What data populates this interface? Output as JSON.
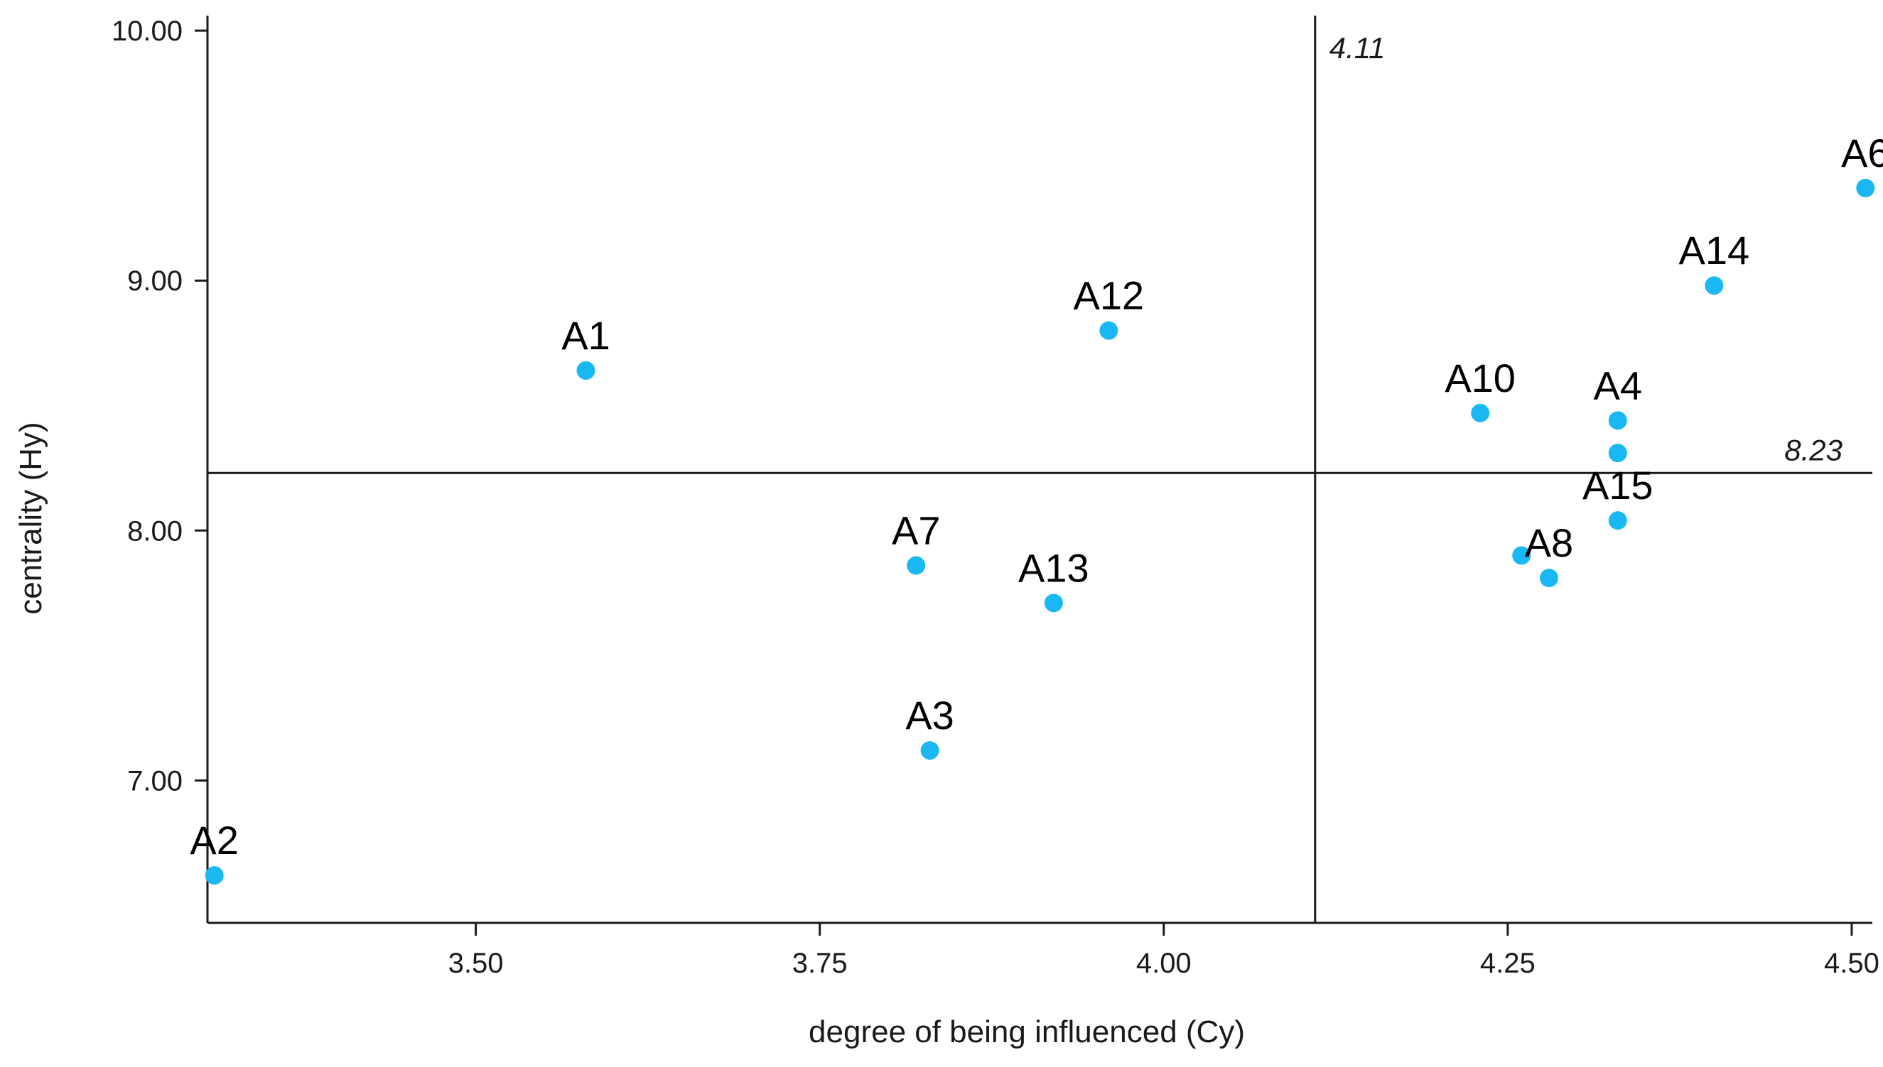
{
  "chart_data": {
    "type": "scatter",
    "title": "",
    "xlabel": "degree of being influenced  (Cy)",
    "ylabel": "centrality  (Hy)",
    "xlim": [
      3.305,
      4.515
    ],
    "ylim": [
      6.43,
      10.06
    ],
    "x_ticks": [
      3.5,
      3.75,
      4.0,
      4.25,
      4.5
    ],
    "x_tick_labels": [
      "3.50",
      "3.75",
      "4.00",
      "4.25",
      "4.50"
    ],
    "y_ticks": [
      7.0,
      8.0,
      9.0,
      10.0
    ],
    "y_tick_labels": [
      "7.00",
      "8.00",
      "9.00",
      "10.00"
    ],
    "grid": false,
    "reference_lines": {
      "vertical": {
        "value": 4.11,
        "label": "4.11"
      },
      "horizontal": {
        "value": 8.23,
        "label": "8.23"
      }
    },
    "colors": {
      "point": "#1ab8f2",
      "axis": "#1a1a1a"
    },
    "points": [
      {
        "label": "A1",
        "x": 3.58,
        "y": 8.64
      },
      {
        "label": "A2",
        "x": 3.31,
        "y": 6.62
      },
      {
        "label": "A3",
        "x": 3.83,
        "y": 7.12
      },
      {
        "label": "A4",
        "x": 4.33,
        "y": 8.44
      },
      {
        "label": "",
        "x": 4.33,
        "y": 8.31
      },
      {
        "label": "A6",
        "x": 4.51,
        "y": 9.37
      },
      {
        "label": "A7",
        "x": 3.82,
        "y": 7.86
      },
      {
        "label": "A8",
        "x": 4.28,
        "y": 7.81
      },
      {
        "label": "",
        "x": 4.26,
        "y": 7.9
      },
      {
        "label": "A10",
        "x": 4.23,
        "y": 8.47
      },
      {
        "label": "A12",
        "x": 3.96,
        "y": 8.8
      },
      {
        "label": "A13",
        "x": 3.92,
        "y": 7.71
      },
      {
        "label": "A14",
        "x": 4.4,
        "y": 8.98
      },
      {
        "label": "A15",
        "x": 4.33,
        "y": 8.04
      }
    ]
  }
}
